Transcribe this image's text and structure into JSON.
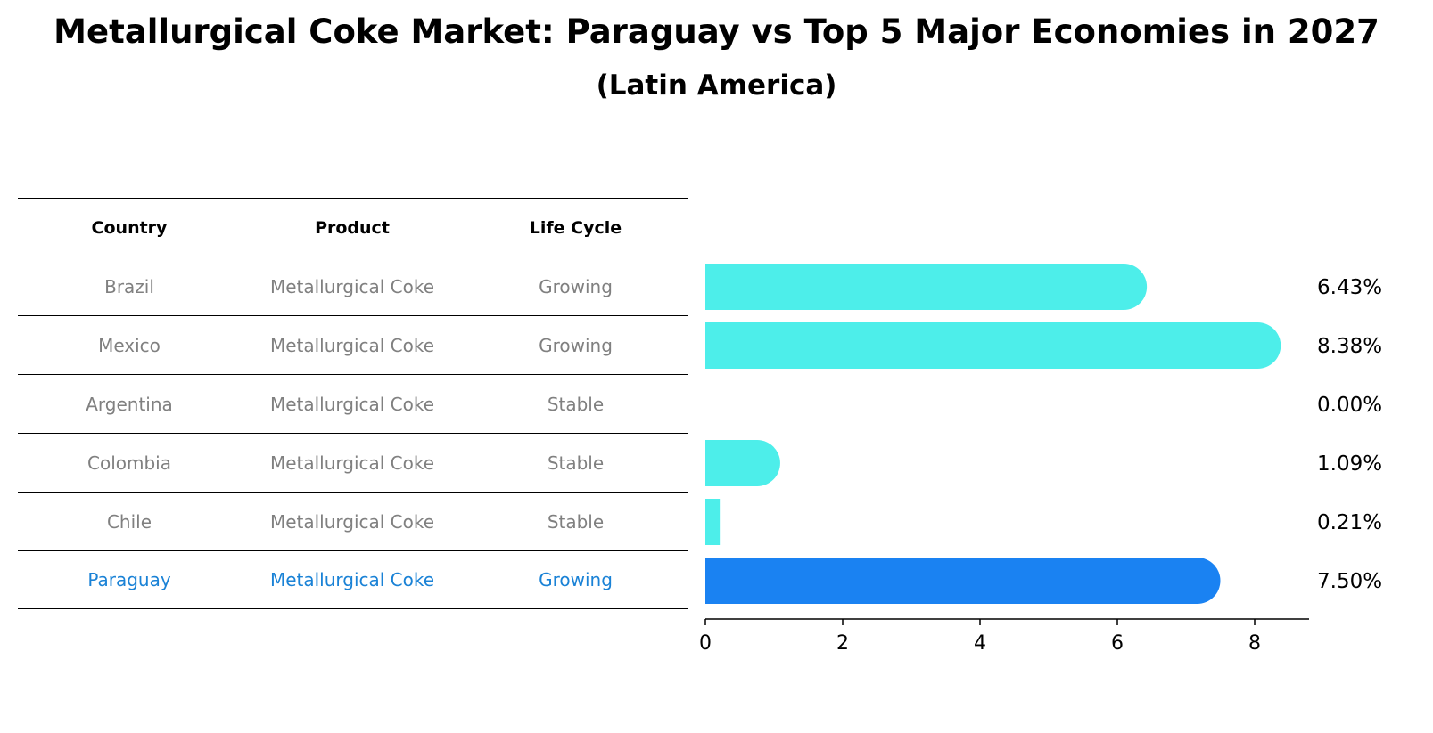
{
  "chart_data": {
    "type": "bar",
    "orientation": "horizontal",
    "title": "Metallurgical Coke Market: Paraguay vs Top 5 Major Economies in 2027",
    "subtitle": "(Latin America)",
    "table": {
      "columns": [
        "Country",
        "Product",
        "Life Cycle"
      ],
      "rows": [
        [
          "Brazil",
          "Metallurgical Coke",
          "Growing"
        ],
        [
          "Mexico",
          "Metallurgical Coke",
          "Growing"
        ],
        [
          "Argentina",
          "Metallurgical Coke",
          "Stable"
        ],
        [
          "Colombia",
          "Metallurgical Coke",
          "Stable"
        ],
        [
          "Chile",
          "Metallurgical Coke",
          "Stable"
        ],
        [
          "Paraguay",
          "Metallurgical Coke",
          "Growing"
        ]
      ]
    },
    "categories": [
      "Brazil",
      "Mexico",
      "Argentina",
      "Colombia",
      "Chile",
      "Paraguay"
    ],
    "values": [
      6.43,
      8.38,
      0.0,
      1.09,
      0.21,
      7.5
    ],
    "value_labels": [
      "6.43%",
      "8.38%",
      "0.00%",
      "1.09%",
      "0.21%",
      "7.50%"
    ],
    "highlight_index": 5,
    "colors": {
      "bar": "#4deeea",
      "highlight": "#1a82f2",
      "highlight_text": "#1a82d6"
    },
    "xlim": [
      0,
      8.8
    ],
    "xticks": [
      0,
      2,
      4,
      6,
      8
    ],
    "xlabel": "",
    "ylabel": ""
  }
}
